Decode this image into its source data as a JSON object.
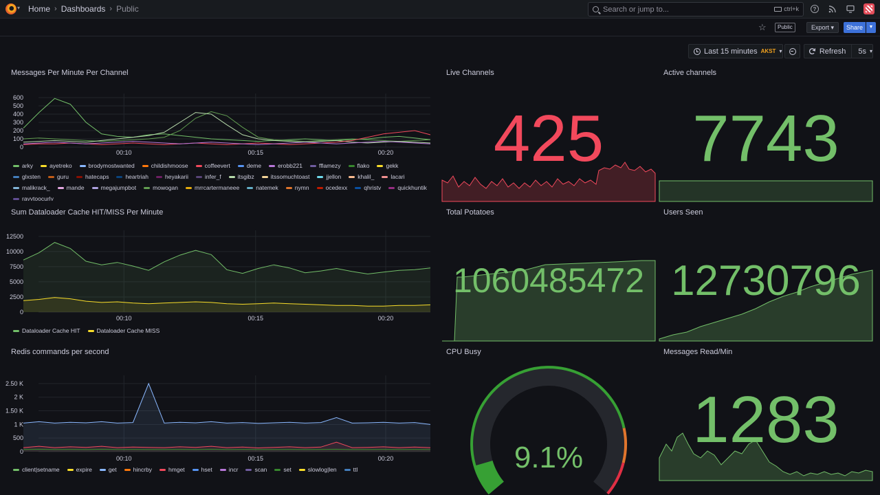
{
  "breadcrumbs": [
    "Home",
    "Dashboards",
    "Public"
  ],
  "search": {
    "placeholder": "Search or jump to...",
    "shortcut": "ctrl+k"
  },
  "toolbar": {
    "public_badge": "Public",
    "export_label": "Export",
    "share_label": "Share"
  },
  "time": {
    "range": "Last 15 minutes",
    "tz": "AKST",
    "refresh_label": "Refresh",
    "interval": "5s"
  },
  "colors": {
    "accent": "#3d71d9",
    "green": "#73bf69",
    "red": "#f2495c",
    "yellow": "#fade2a",
    "orange": "#f4a31f"
  },
  "panels": {
    "messages": {
      "title": "Messages Per Minute Per Channel",
      "legend": [
        {
          "name": "arky",
          "color": "#73bf69"
        },
        {
          "name": "ayetreko",
          "color": "#fade2a"
        },
        {
          "name": "brodymostwanted",
          "color": "#8ab8ff"
        },
        {
          "name": "childishmoose",
          "color": "#ff780a"
        },
        {
          "name": "coffeevert",
          "color": "#f2495c"
        },
        {
          "name": "deme",
          "color": "#5794f2"
        },
        {
          "name": "erobb221",
          "color": "#b877d9"
        },
        {
          "name": "fflamezy",
          "color": "#705da0"
        },
        {
          "name": "flako",
          "color": "#37872d"
        },
        {
          "name": "gekk",
          "color": "#fade2a"
        },
        {
          "name": "glxsten",
          "color": "#447ebc"
        },
        {
          "name": "guru",
          "color": "#c15c17"
        },
        {
          "name": "hatecaps",
          "color": "#890f02"
        },
        {
          "name": "heartriah",
          "color": "#0a437c"
        },
        {
          "name": "heyakarii",
          "color": "#6d1f62"
        },
        {
          "name": "infer_f",
          "color": "#584477"
        },
        {
          "name": "itsgibz",
          "color": "#b7dbab"
        },
        {
          "name": "itssomuchtoast",
          "color": "#f4d598"
        },
        {
          "name": "jjellon",
          "color": "#70dbed"
        },
        {
          "name": "khalil_",
          "color": "#f9ba8f"
        },
        {
          "name": "lacari",
          "color": "#f29191"
        },
        {
          "name": "malikrack_",
          "color": "#82b5d8"
        },
        {
          "name": "mande",
          "color": "#e5a8e2"
        },
        {
          "name": "megajumpbot",
          "color": "#aea2e0"
        },
        {
          "name": "mowogan",
          "color": "#629e51"
        },
        {
          "name": "mrrcartermaneee",
          "color": "#e5ac0e"
        },
        {
          "name": "natemek",
          "color": "#64b0c8"
        },
        {
          "name": "nymn",
          "color": "#e0752d"
        },
        {
          "name": "ocedexx",
          "color": "#bf1b00"
        },
        {
          "name": "qhristv",
          "color": "#0a50a1"
        },
        {
          "name": "quickhuntik",
          "color": "#962d82"
        },
        {
          "name": "rayytoocurly",
          "color": "#614d93"
        }
      ]
    },
    "cache": {
      "title": "Sum Dataloader Cache HIT/MISS Per Minute",
      "legend": [
        {
          "name": "Dataloader Cache HIT",
          "color": "#73bf69"
        },
        {
          "name": "Dataloader Cache MISS",
          "color": "#fade2a"
        }
      ]
    },
    "redis": {
      "title": "Redis commands per second",
      "legend": [
        {
          "name": "client|setname",
          "color": "#73bf69"
        },
        {
          "name": "expire",
          "color": "#fade2a"
        },
        {
          "name": "get",
          "color": "#8ab8ff"
        },
        {
          "name": "hincrby",
          "color": "#ff780a"
        },
        {
          "name": "hmget",
          "color": "#f2495c"
        },
        {
          "name": "hset",
          "color": "#5794f2"
        },
        {
          "name": "incr",
          "color": "#b877d9"
        },
        {
          "name": "scan",
          "color": "#705da0"
        },
        {
          "name": "set",
          "color": "#37872d"
        },
        {
          "name": "slowlog|len",
          "color": "#fade2a"
        },
        {
          "name": "ttl",
          "color": "#447ebc"
        }
      ]
    },
    "live_channels": {
      "title": "Live Channels",
      "value": "425",
      "color": "#f2495c"
    },
    "active_channels": {
      "title": "Active channels",
      "value": "7743",
      "color": "#73bf69"
    },
    "total_potatoes": {
      "title": "Total Potatoes",
      "value": "1060485472",
      "color": "#73bf69"
    },
    "users_seen": {
      "title": "Users Seen",
      "value": "12730796",
      "color": "#73bf69"
    },
    "cpu_busy": {
      "title": "CPU Busy",
      "value": "9.1%",
      "percent": 9.1,
      "color": "#73bf69"
    },
    "messages_read": {
      "title": "Messages Read/Min",
      "value": "1283",
      "color": "#73bf69"
    }
  },
  "chart_data": [
    {
      "type": "line",
      "title": "Messages Per Minute Per Channel",
      "x_ticks": [
        "00:10",
        "00:15",
        "00:20"
      ],
      "y_ticks": [
        0,
        100,
        200,
        300,
        400,
        500,
        600
      ],
      "ylim": [
        0,
        650
      ],
      "series": [
        {
          "name": "arky",
          "values": [
            230,
            420,
            590,
            520,
            300,
            160,
            130,
            120,
            150,
            160,
            140,
            120,
            100,
            90,
            80,
            70,
            80,
            90,
            100,
            90,
            80,
            90,
            100,
            120,
            130,
            110,
            90
          ]
        },
        {
          "name": "mowogan",
          "values": [
            100,
            110,
            100,
            90,
            80,
            70,
            80,
            90,
            100,
            120,
            200,
            350,
            430,
            380,
            240,
            120,
            90,
            80,
            70,
            80,
            90,
            100,
            90,
            80,
            70,
            80,
            90
          ]
        },
        {
          "name": "itsgibz",
          "values": [
            60,
            70,
            80,
            70,
            60,
            80,
            100,
            120,
            140,
            180,
            300,
            420,
            400,
            270,
            150,
            100,
            80,
            70,
            60,
            70,
            80,
            60,
            50,
            60,
            70,
            60,
            50
          ]
        },
        {
          "name": "coffeevert",
          "values": [
            30,
            40,
            40,
            50,
            40,
            30,
            40,
            50,
            40,
            30,
            40,
            50,
            40,
            30,
            40,
            50,
            40,
            30,
            40,
            50,
            60,
            80,
            120,
            160,
            180,
            200,
            150
          ]
        },
        {
          "name": "erobb221",
          "values": [
            40,
            50,
            60,
            50,
            40,
            50,
            60,
            70,
            60,
            50,
            40,
            50,
            60,
            50,
            40,
            30,
            40,
            50,
            60,
            50,
            40,
            50,
            60,
            70,
            60,
            50,
            40
          ]
        }
      ]
    },
    {
      "type": "area",
      "title": "Sum Dataloader Cache HIT/MISS Per Minute",
      "x_ticks": [
        "00:10",
        "00:15",
        "00:20"
      ],
      "y_ticks": [
        0,
        2500,
        5000,
        7500,
        10000,
        12500
      ],
      "ylim": [
        0,
        13500
      ],
      "series": [
        {
          "name": "Dataloader Cache HIT",
          "values": [
            8600,
            9800,
            11500,
            10500,
            8400,
            7800,
            8200,
            7600,
            6900,
            8300,
            9400,
            10200,
            9500,
            7000,
            6400,
            7200,
            7800,
            7300,
            6500,
            6800,
            7200,
            6700,
            6300,
            6600,
            6900,
            7000,
            7300
          ]
        },
        {
          "name": "Dataloader Cache MISS",
          "values": [
            1900,
            2100,
            2400,
            2200,
            1800,
            1600,
            1700,
            1500,
            1400,
            1500,
            1600,
            1700,
            1600,
            1400,
            1300,
            1400,
            1500,
            1400,
            1300,
            1200,
            1100,
            1100,
            1000,
            1000,
            1100,
            1100,
            1200
          ]
        }
      ]
    },
    {
      "type": "area",
      "title": "Redis commands per second",
      "x_ticks": [
        "00:10",
        "00:15",
        "00:20"
      ],
      "y_ticks": [
        "0",
        "500",
        "1 K",
        "1.50 K",
        "2 K",
        "2.50 K"
      ],
      "ylim": [
        0,
        2800
      ],
      "series": [
        {
          "name": "get",
          "values": [
            1050,
            1100,
            1050,
            1080,
            1060,
            1100,
            1050,
            1070,
            2500,
            1050,
            1080,
            1060,
            1100,
            1050,
            1070,
            1040,
            1060,
            1080,
            1050,
            1070,
            1250,
            1050,
            1060,
            1080,
            1050,
            1070,
            1000
          ]
        },
        {
          "name": "hmget",
          "values": [
            150,
            200,
            150,
            180,
            160,
            200,
            150,
            170,
            160,
            150,
            180,
            160,
            200,
            150,
            170,
            140,
            160,
            180,
            150,
            170,
            350,
            150,
            160,
            180,
            150,
            170,
            150
          ]
        },
        {
          "name": "set",
          "values": [
            80,
            90,
            80,
            85,
            80,
            90,
            80,
            85,
            80,
            80,
            85,
            80,
            90,
            80,
            85,
            80,
            80,
            85,
            80,
            85,
            90,
            80,
            80,
            85,
            80,
            85,
            80
          ]
        }
      ]
    }
  ]
}
